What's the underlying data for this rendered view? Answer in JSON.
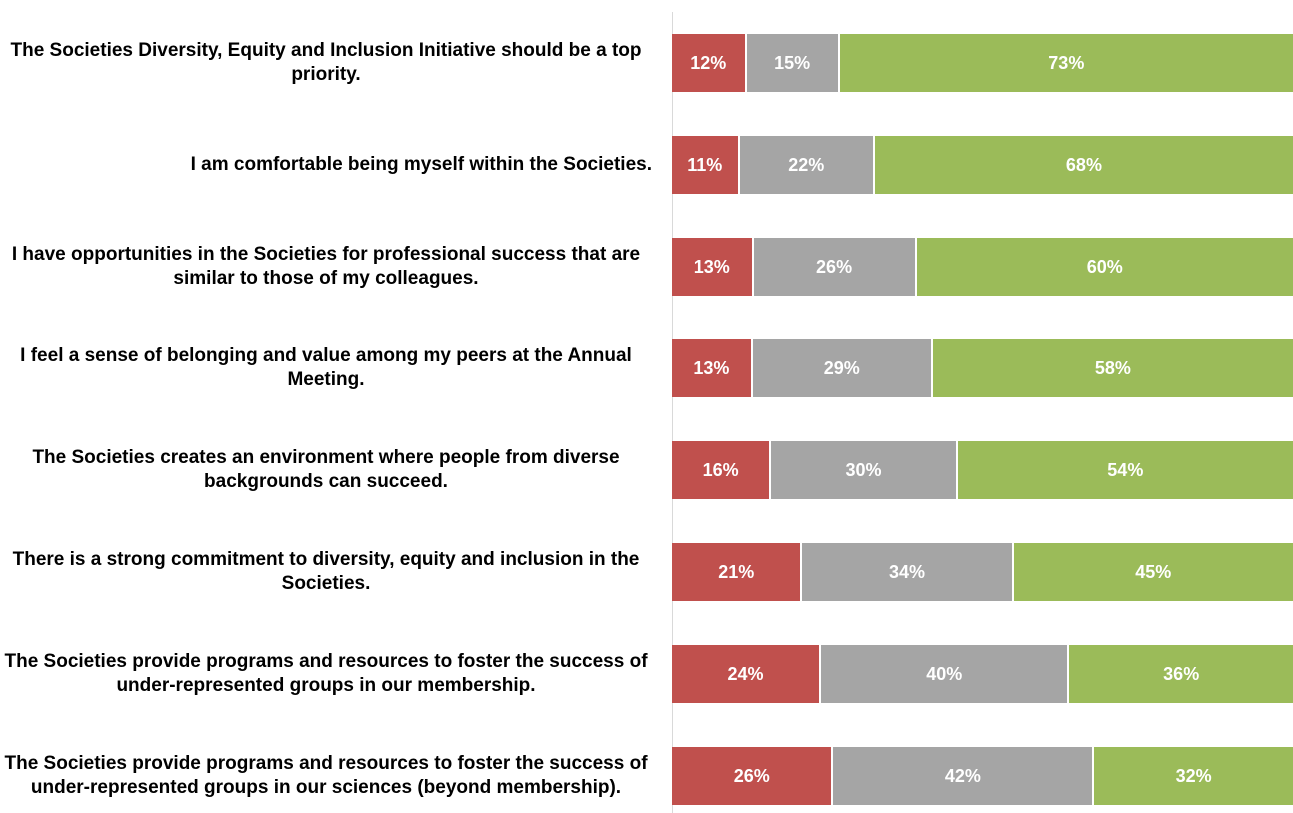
{
  "chart_data": {
    "type": "bar",
    "orientation": "horizontal",
    "stacked": true,
    "xlim": [
      0,
      100
    ],
    "grid": false,
    "legend": "none",
    "categories": [
      "The Societies Diversity, Equity and Inclusion Initiative should be a top priority.",
      "I am comfortable being myself within the Societies.",
      "I have opportunities in the Societies for professional success that are similar to those of my colleagues.",
      "I feel a sense of belonging and value among my peers at the Annual Meeting.",
      "The Societies creates an environment where people from diverse backgrounds can succeed.",
      "There is a strong commitment to diversity, equity and inclusion in the Societies.",
      "The Societies provide programs and resources to foster the success of under-represented groups in our membership.",
      "The Societies provide programs and resources to foster the success of under-represented groups in our sciences (beyond membership)."
    ],
    "series": [
      {
        "color": "#c0504d",
        "values": [
          12,
          11,
          13,
          13,
          16,
          21,
          24,
          26
        ]
      },
      {
        "color": "#a5a5a5",
        "values": [
          15,
          22,
          26,
          29,
          30,
          34,
          40,
          42
        ]
      },
      {
        "color": "#9bbb59",
        "values": [
          73,
          68,
          60,
          58,
          54,
          45,
          36,
          32
        ]
      }
    ],
    "value_labels": [
      [
        "12%",
        "15%",
        "73%"
      ],
      [
        "11%",
        "22%",
        "68%"
      ],
      [
        "13%",
        "26%",
        "60%"
      ],
      [
        "13%",
        "29%",
        "58%"
      ],
      [
        "16%",
        "30%",
        "54%"
      ],
      [
        "21%",
        "34%",
        "45%"
      ],
      [
        "24%",
        "40%",
        "36%"
      ],
      [
        "26%",
        "42%",
        "32%"
      ]
    ]
  }
}
